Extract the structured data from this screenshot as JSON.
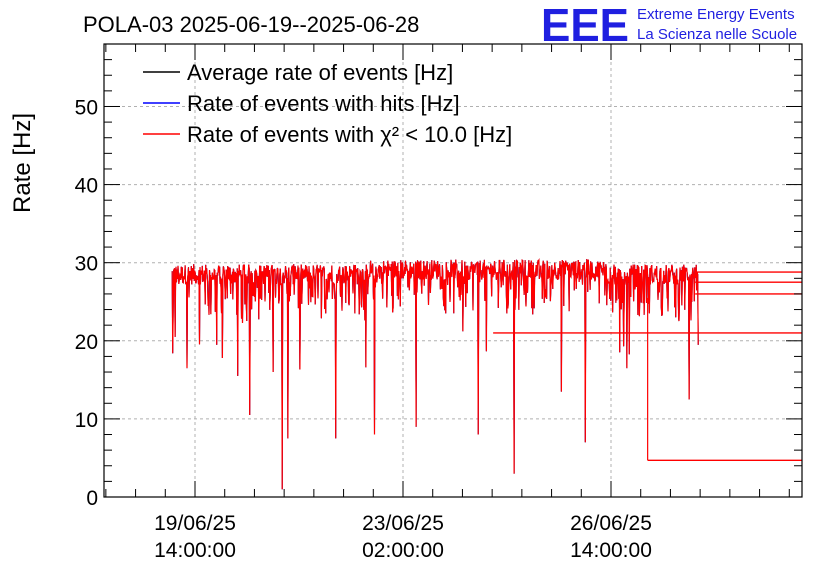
{
  "chart_data": {
    "type": "line",
    "title": "POLA-03 2025-06-19--2025-06-28",
    "ylabel": "Rate [Hz]",
    "xlabel": "",
    "ylim": [
      0,
      58
    ],
    "y_ticks": [
      0,
      10,
      20,
      30,
      40,
      50
    ],
    "x_ticks": [
      {
        "date": "19/06/25",
        "time": "14:00:00"
      },
      {
        "date": "23/06/25",
        "time": "02:00:00"
      },
      {
        "date": "26/06/25",
        "time": "14:00:00"
      }
    ],
    "grid": true,
    "legend_position": "top-left",
    "series": [
      {
        "name": "Average rate of events [Hz]",
        "color": "#000000",
        "typical": 28.5
      },
      {
        "name": "Rate of events with hits [Hz]",
        "color": "#0000ff",
        "typical": 28.5
      },
      {
        "name": "Rate of events with χ² < 10.0 [Hz]",
        "color": "#ff0000",
        "typical": 28.5,
        "dips": [
          {
            "day": 0.25,
            "value": 20.5
          },
          {
            "day": 0.45,
            "value": 16.5
          },
          {
            "day": 0.95,
            "value": 19.5
          },
          {
            "day": 1.3,
            "value": 15.5
          },
          {
            "day": 1.5,
            "value": 10.5
          },
          {
            "day": 1.9,
            "value": 16.0
          },
          {
            "day": 2.05,
            "value": 1.0
          },
          {
            "day": 2.15,
            "value": 7.5
          },
          {
            "day": 2.95,
            "value": 7.5
          },
          {
            "day": 3.6,
            "value": 8.0
          },
          {
            "day": 4.3,
            "value": 9.0
          },
          {
            "day": 5.35,
            "value": 8.0
          },
          {
            "day": 5.95,
            "value": 3.0
          },
          {
            "day": 6.75,
            "value": 13.5
          },
          {
            "day": 7.15,
            "value": 7.0
          },
          {
            "day": 7.85,
            "value": 16.5
          },
          {
            "day": 8.9,
            "value": 12.5
          },
          {
            "day": 9.05,
            "value": 19.5
          }
        ],
        "flat_segments": [
          {
            "from_day": 5.6,
            "value": 21.0
          },
          {
            "from_day": 8.2,
            "value": 4.7
          },
          {
            "from_day": 9.0,
            "value": 26.0
          },
          {
            "from_day": 9.0,
            "value": 27.5
          },
          {
            "from_day": 9.0,
            "value": 28.8
          }
        ]
      }
    ]
  },
  "logo": {
    "mark": "EEE",
    "line1": "Extreme Energy Events",
    "line2": "La Scienza nelle Scuole"
  }
}
